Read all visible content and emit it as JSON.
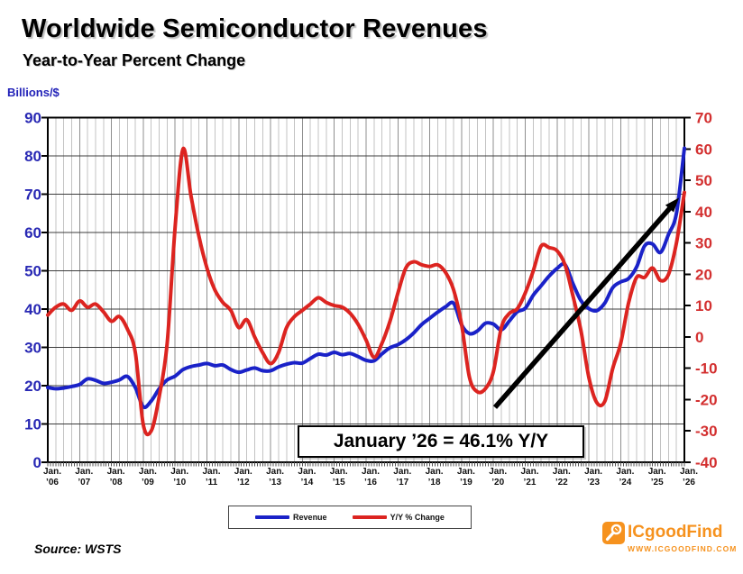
{
  "title": "Worldwide Semiconductor Revenues",
  "subtitle": "Year-to-Year Percent Change",
  "left_axis_unit": "Billions/$",
  "source": "Source: WSTS",
  "annotation": {
    "text": "January ’26 = 46.1% Y/Y"
  },
  "legend": [
    {
      "label": "Revenue",
      "color": "#1a22c8"
    },
    {
      "label": "Y/Y % Change",
      "color": "#dc2420"
    }
  ],
  "branding": {
    "name": "ICgoodFind",
    "url": "WWW.ICGOODFIND.COM",
    "color": "#f6921e",
    "icon": "magnifier-icon"
  },
  "colors": {
    "revenue_line": "#1a22c8",
    "yoy_line": "#dc2420",
    "left_axis_labels": "#2828b4",
    "right_axis_labels": "#d33030",
    "brand_orange": "#f6921e"
  },
  "chart_data": {
    "type": "line",
    "title": "Worldwide Semiconductor Revenues",
    "subtitle": "Year-to-Year Percent Change",
    "x_start_year": 2006,
    "x_end_year": 2026,
    "x_points_per_year": 4,
    "x_tick_labels": [
      [
        "Jan.",
        "'06"
      ],
      [
        "Jan.",
        "'07"
      ],
      [
        "Jan.",
        "'08"
      ],
      [
        "Jan.",
        "'09"
      ],
      [
        "Jan.",
        "'10"
      ],
      [
        "Jan.",
        "'11"
      ],
      [
        "Jan.",
        "'12"
      ],
      [
        "Jan.",
        "'13"
      ],
      [
        "Jan.",
        "'14"
      ],
      [
        "Jan.",
        "'15"
      ],
      [
        "Jan.",
        "'16"
      ],
      [
        "Jan.",
        "'17"
      ],
      [
        "Jan.",
        "'18"
      ],
      [
        "Jan.",
        "'19"
      ],
      [
        "Jan.",
        "'20"
      ],
      [
        "Jan.",
        "'21"
      ],
      [
        "Jan.",
        "'22"
      ],
      [
        "Jan.",
        "'23"
      ],
      [
        "Jan.",
        "'24"
      ],
      [
        "Jan.",
        "'25"
      ],
      [
        "Jan.",
        "'26"
      ]
    ],
    "left_axis": {
      "label": "Billions/$",
      "min": 0,
      "max": 90,
      "step": 10,
      "color": "#2828b4"
    },
    "right_axis": {
      "label": "Y/Y % Change",
      "min": -40,
      "max": 70,
      "step": 10,
      "color": "#d33030"
    },
    "grid": {
      "vertical": "quarterly",
      "horizontal": "left-axis-steps"
    },
    "legend_position": "bottom-center",
    "series": [
      {
        "name": "Revenue",
        "axis": "left",
        "color": "#1a22c8",
        "values": [
          19.5,
          19.2,
          19.4,
          19.8,
          20.3,
          21.8,
          21.4,
          20.6,
          20.9,
          21.5,
          22.4,
          19.5,
          14.5,
          16.0,
          19.2,
          21.5,
          22.5,
          24.2,
          25.0,
          25.4,
          25.8,
          25.2,
          25.4,
          24.2,
          23.5,
          24.1,
          24.6,
          23.9,
          23.9,
          24.9,
          25.6,
          26.0,
          25.9,
          27.1,
          28.2,
          28.0,
          28.7,
          28.1,
          28.4,
          27.6,
          26.6,
          26.5,
          28.3,
          29.9,
          30.7,
          32.0,
          33.8,
          36.0,
          37.6,
          39.2,
          40.6,
          41.5,
          35.9,
          33.6,
          34.3,
          36.3,
          36.1,
          34.6,
          36.9,
          39.3,
          40.2,
          43.6,
          46.1,
          48.6,
          50.6,
          51.6,
          46.6,
          42.2,
          40.1,
          39.6,
          41.6,
          45.6,
          47.1,
          48.0,
          51.0,
          56.5,
          57.0,
          54.8,
          59.5,
          65.0,
          82.0
        ]
      },
      {
        "name": "Y/Y % Change",
        "axis": "right",
        "color": "#dc2420",
        "values": [
          7.0,
          9.5,
          10.5,
          8.5,
          11.5,
          9.5,
          10.5,
          8.0,
          5.0,
          6.5,
          2.5,
          -5.0,
          -28.0,
          -30.0,
          -19.0,
          -2.0,
          35.0,
          60.0,
          45.0,
          32.0,
          22.0,
          15.0,
          11.0,
          8.5,
          3.0,
          5.5,
          0.0,
          -5.0,
          -8.5,
          -5.0,
          3.0,
          6.5,
          8.5,
          10.5,
          12.5,
          11.0,
          10.0,
          9.5,
          7.5,
          4.0,
          -1.0,
          -6.5,
          -2.0,
          5.0,
          14.0,
          22.0,
          24.0,
          23.0,
          22.5,
          23.0,
          20.5,
          15.0,
          4.0,
          -13.0,
          -17.5,
          -16.5,
          -11.0,
          3.0,
          7.5,
          9.0,
          14.0,
          21.0,
          29.0,
          28.5,
          27.5,
          23.0,
          13.0,
          2.0,
          -13.0,
          -21.0,
          -20.5,
          -10.0,
          -2.0,
          11.0,
          19.0,
          19.0,
          22.0,
          18.0,
          20.0,
          30.0,
          46.1
        ]
      }
    ],
    "annotations": {
      "callout_text": "January ’26 = 46.1% Y/Y",
      "arrow": {
        "from_year": 2020.05,
        "from_value_right": -22.5,
        "to_year": 2025.83,
        "to_value_right": 44.4
      }
    }
  }
}
